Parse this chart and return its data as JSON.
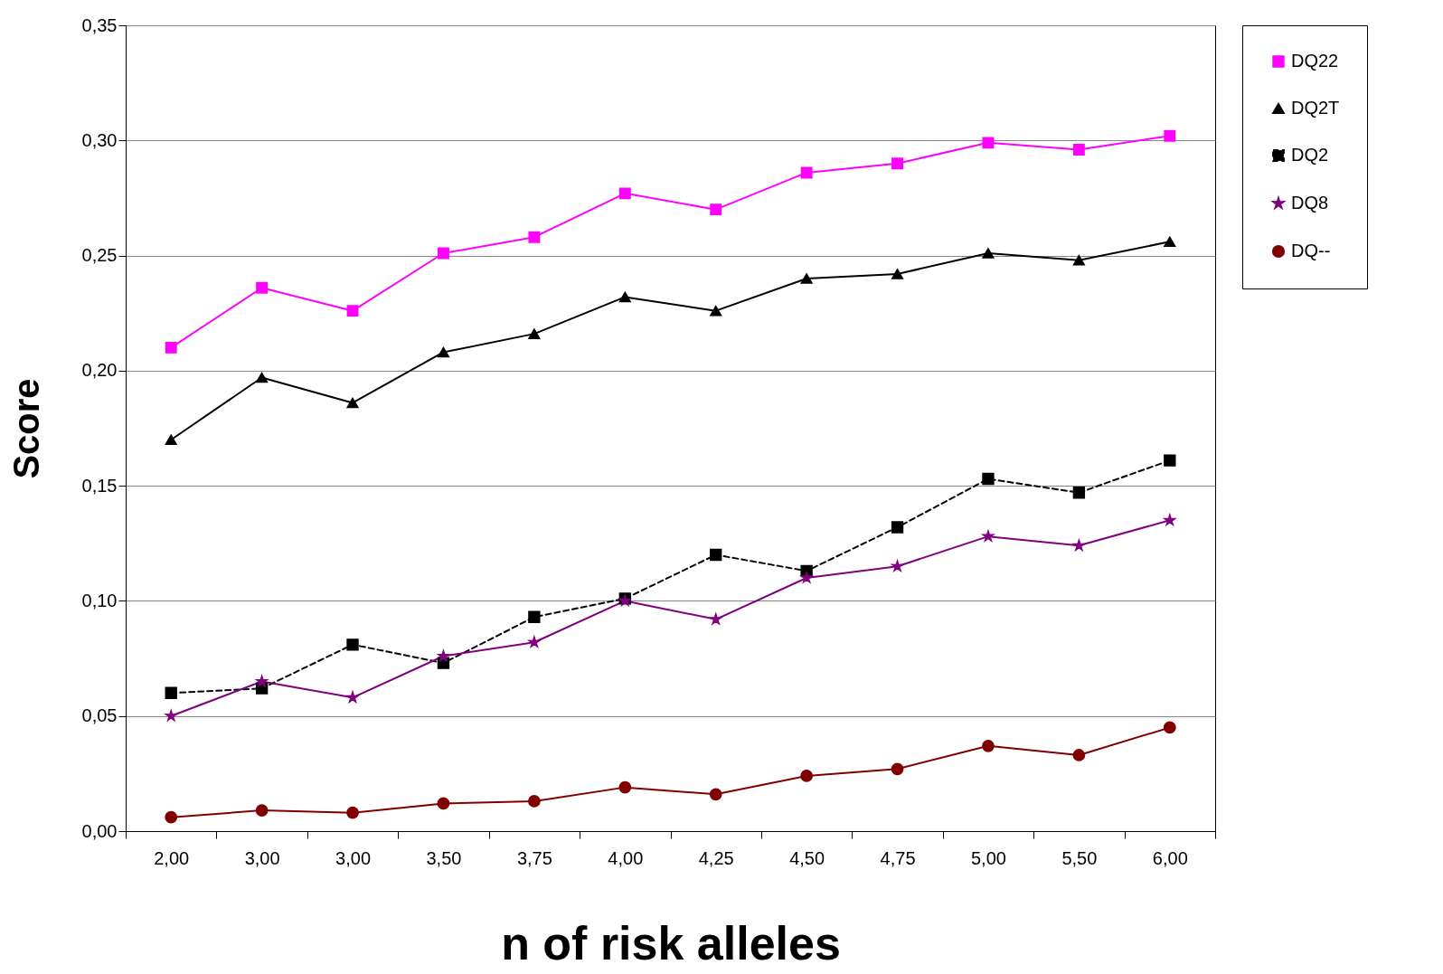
{
  "chart_data": {
    "type": "line",
    "xlabel": "n of risk alleles",
    "ylabel": "Score",
    "categories": [
      "2,00",
      "3,00",
      "3,00",
      "3,50",
      "3,75",
      "4,00",
      "4,25",
      "4,50",
      "4,75",
      "5,00",
      "5,50",
      "6,00"
    ],
    "series": [
      {
        "name": "DQ22",
        "color": "#ff00ff",
        "marker": "square",
        "line_style": "solid",
        "values": [
          0.21,
          0.236,
          0.226,
          0.251,
          0.258,
          0.277,
          0.27,
          0.286,
          0.29,
          0.299,
          0.296,
          0.302
        ]
      },
      {
        "name": "DQ2T",
        "color": "#000000",
        "marker": "triangle",
        "line_style": "solid",
        "values": [
          0.17,
          0.197,
          0.186,
          0.208,
          0.216,
          0.232,
          0.226,
          0.24,
          0.242,
          0.251,
          0.248,
          0.256
        ]
      },
      {
        "name": "DQ2",
        "color": "#000000",
        "marker": "square",
        "line_style": "dashed",
        "values": [
          0.06,
          0.062,
          0.081,
          0.073,
          0.093,
          0.101,
          0.12,
          0.113,
          0.132,
          0.153,
          0.147,
          0.161
        ]
      },
      {
        "name": "DQ8",
        "color": "#800080",
        "marker": "star",
        "line_style": "solid",
        "values": [
          0.05,
          0.065,
          0.058,
          0.076,
          0.082,
          0.1,
          0.092,
          0.11,
          0.115,
          0.128,
          0.124,
          0.135
        ]
      },
      {
        "name": "DQ--",
        "color": "#800000",
        "marker": "circle",
        "line_style": "solid",
        "values": [
          0.006,
          0.009,
          0.008,
          0.012,
          0.013,
          0.019,
          0.016,
          0.024,
          0.027,
          0.037,
          0.033,
          0.045
        ]
      }
    ],
    "ylim": [
      0,
      0.35
    ],
    "yticks": [
      {
        "value": 0,
        "label": "0,00"
      },
      {
        "value": 0.05,
        "label": "0,05"
      },
      {
        "value": 0.1,
        "label": "0,10"
      },
      {
        "value": 0.15,
        "label": "0,15"
      },
      {
        "value": 0.2,
        "label": "0,20"
      },
      {
        "value": 0.25,
        "label": "0,25"
      },
      {
        "value": 0.3,
        "label": "0,30"
      },
      {
        "value": 0.35,
        "label": "0,35"
      }
    ],
    "grid": "y",
    "legend": "right"
  }
}
